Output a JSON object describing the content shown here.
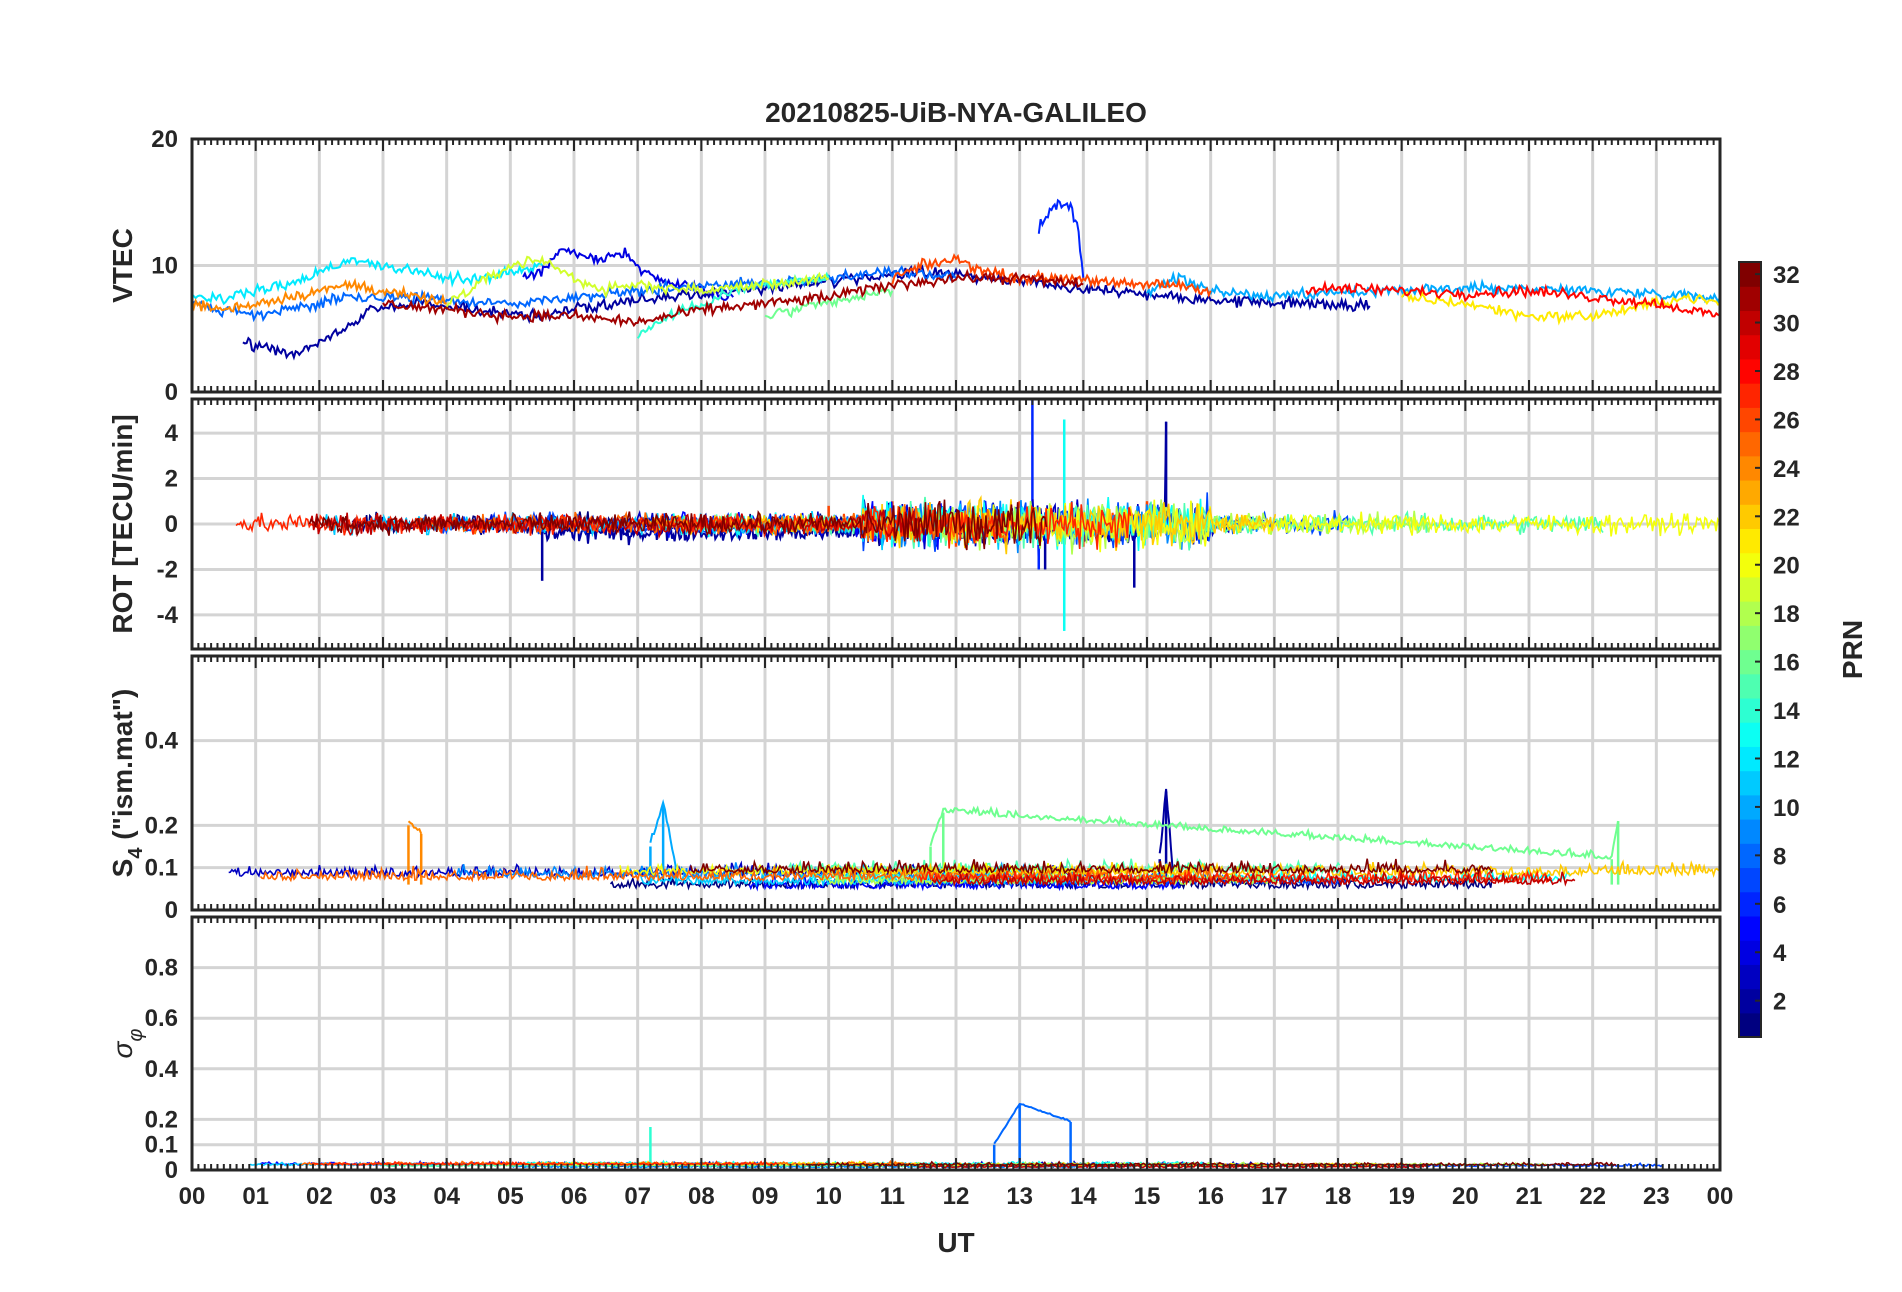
{
  "chart_data": {
    "type": "line",
    "title": "20210825-UiB-NYA-GALILEO",
    "xlabel": "UT",
    "x_ticks": [
      "00",
      "01",
      "02",
      "03",
      "04",
      "05",
      "06",
      "07",
      "08",
      "09",
      "10",
      "11",
      "12",
      "13",
      "14",
      "15",
      "16",
      "17",
      "18",
      "19",
      "20",
      "21",
      "22",
      "23",
      "00"
    ],
    "xlim_hours": [
      0,
      24
    ],
    "colorbar": {
      "label": "PRN",
      "colormap": "jet",
      "range": [
        1,
        32
      ],
      "ticks": [
        "2",
        "4",
        "6",
        "8",
        "10",
        "12",
        "14",
        "16",
        "18",
        "20",
        "22",
        "24",
        "26",
        "28",
        "30",
        "32"
      ]
    },
    "panels": [
      {
        "ylabel": "VTEC",
        "ylim": [
          0,
          20
        ],
        "y_ticks": [
          "0",
          "10",
          "20"
        ],
        "note": "VTEC roughly 5–11 TECU for all satellites; short spike near 13–14 UT up to ~15 TECU",
        "series": [
          {
            "prn": 2,
            "x": [
              0.8,
              1.2,
              1.6,
              2.0,
              2.4,
              2.8,
              3.5,
              4.5,
              5.5,
              6.5,
              7.5,
              8.5,
              9.5,
              10.5,
              11.5,
              12.5,
              13.5,
              14.5,
              15.5,
              16.5,
              17.5,
              18.5
            ],
            "y": [
              4,
              3.5,
              3,
              4,
              5,
              6.5,
              7,
              6.5,
              6,
              7,
              7.5,
              8,
              8.5,
              9,
              9.5,
              9,
              8.5,
              8,
              7.5,
              7.2,
              7,
              6.8
            ]
          },
          {
            "prn": 4,
            "x": [
              5.2,
              5.6,
              5.8,
              6.0,
              6.4,
              6.8,
              7.2,
              7.6,
              8.0,
              8.5
            ],
            "y": [
              9,
              10,
              11.5,
              11,
              10.5,
              11,
              9,
              8.5,
              8,
              7.5
            ]
          },
          {
            "prn": 6,
            "x": [
              13.3,
              13.5,
              13.6,
              13.8,
              13.9,
              14.0
            ],
            "y": [
              13,
              14.5,
              15,
              14.5,
              13.5,
              9
            ]
          },
          {
            "prn": 8,
            "x": [
              0,
              0.5,
              1.0,
              1.5,
              2.0,
              2.5,
              3.0,
              3.5,
              4.0,
              5.0,
              6.0,
              7.0,
              8.0,
              9.0,
              10.0,
              11.0,
              12.0
            ],
            "y": [
              7,
              6.5,
              6,
              6.5,
              7,
              7.5,
              7.5,
              7.5,
              7.2,
              7,
              7.5,
              8,
              8.5,
              8.5,
              9,
              9.5,
              9
            ]
          },
          {
            "prn": 10,
            "x": [
              15.0,
              15.5,
              16,
              17,
              18,
              19,
              20,
              21,
              22,
              23,
              24
            ],
            "y": [
              8,
              9,
              8,
              7.5,
              7.8,
              8,
              8.2,
              8.2,
              8,
              7.8,
              7.5
            ]
          },
          {
            "prn": 12,
            "x": [
              0,
              0.5,
              1,
              1.5,
              2,
              2.5,
              3,
              3.5,
              4,
              4.5,
              5,
              5.5
            ],
            "y": [
              7.5,
              7.5,
              8,
              8.5,
              9.5,
              10.5,
              10,
              9.5,
              9,
              9,
              9.5,
              10
            ]
          },
          {
            "prn": 14,
            "x": [
              7,
              7.5,
              8,
              8.5,
              9,
              10
            ],
            "y": [
              4.5,
              6,
              7,
              8,
              8.5,
              9
            ]
          },
          {
            "prn": 16,
            "x": [
              9,
              9.5,
              10,
              10.5,
              11
            ],
            "y": [
              6,
              6.5,
              7,
              7.5,
              8
            ]
          },
          {
            "prn": 19,
            "x": [
              4,
              4.5,
              5,
              5.5,
              6,
              6.5,
              7,
              8,
              9,
              10
            ],
            "y": [
              7,
              8.5,
              10,
              10.5,
              9,
              8,
              8.5,
              8,
              8.5,
              9
            ]
          },
          {
            "prn": 21,
            "x": [
              19,
              20,
              21,
              22,
              23,
              23.5,
              24
            ],
            "y": [
              7.5,
              7,
              6,
              6,
              7,
              7.5,
              7
            ]
          },
          {
            "prn": 24,
            "x": [
              0,
              0.5,
              1,
              1.5,
              2,
              2.5,
              3,
              3.5,
              4
            ],
            "y": [
              7,
              6.5,
              7,
              7.5,
              8,
              8.5,
              8,
              7.5,
              7
            ]
          },
          {
            "prn": 26,
            "x": [
              11,
              11.5,
              12,
              12.5,
              13,
              13.5,
              14,
              14.5,
              15,
              15.5,
              16
            ],
            "y": [
              9,
              10,
              10.5,
              9.5,
              9,
              9,
              9,
              8.5,
              8.5,
              8.5,
              8
            ]
          },
          {
            "prn": 28,
            "x": [
              17.5,
              18,
              19,
              20,
              21,
              22,
              23,
              24
            ],
            "y": [
              8,
              8.2,
              8,
              7.8,
              8,
              7.5,
              7,
              6
            ]
          },
          {
            "prn": 31,
            "x": [
              3,
              4,
              5,
              6,
              7,
              8,
              9,
              10,
              11,
              12,
              13,
              14
            ],
            "y": [
              7,
              6.5,
              6,
              6,
              5.5,
              6.5,
              7,
              7.5,
              8.5,
              9,
              9,
              8.5
            ]
          }
        ]
      },
      {
        "ylabel": "ROT [TECU/min]",
        "ylim": [
          -5.5,
          5.5
        ],
        "y_ticks": [
          "4",
          "2",
          "0",
          "-2",
          "-4"
        ],
        "note": "ROT fluctuates near zero (±1 TECU/min); bursts between 11–16 UT reaching about ±5 TECU/min",
        "series": [
          {
            "prn": 2,
            "x": [
              5.5,
              13.4,
              14.8,
              15.3
            ],
            "y": [
              -2.5,
              -2,
              -2.8,
              4.5
            ]
          },
          {
            "prn": 6,
            "x": [
              13.2,
              13.3
            ],
            "y": [
              5.5,
              -2
            ]
          },
          {
            "prn": 13,
            "x": [
              13.7,
              13.7
            ],
            "y": [
              4.6,
              -4.7
            ]
          },
          {
            "prn": 26,
            "x": [
              10,
              11,
              12,
              13,
              14,
              15
            ],
            "y": [
              0.8,
              1,
              -1,
              1,
              -1,
              1
            ]
          }
        ]
      },
      {
        "ylabel": "S4 (\"ism.mat\")",
        "ylabel_main": "S",
        "ylabel_sub": "4",
        "ylabel_rest": " (\"ism.mat\")",
        "ylim": [
          0,
          0.6
        ],
        "y_ticks": [
          "0",
          "0.1",
          "0.2",
          "0.4"
        ],
        "note": "S4 mostly 0.03–0.12; peaks ~0.25 near 07 UT and ~0.28 near 15.3 UT",
        "series": [
          {
            "prn": 2,
            "x": [
              15.2,
              15.3,
              15.4
            ],
            "y": [
              0.12,
              0.28,
              0.1
            ]
          },
          {
            "prn": 10,
            "x": [
              7.2,
              7.4,
              7.6
            ],
            "y": [
              0.15,
              0.25,
              0.1
            ]
          },
          {
            "prn": 16,
            "x": [
              11.6,
              11.8,
              22.3,
              22.4
            ],
            "y": [
              0.15,
              0.23,
              0.12,
              0.21
            ]
          },
          {
            "prn": 24,
            "x": [
              3.4,
              3.6
            ],
            "y": [
              0.2,
              0.18
            ]
          }
        ]
      },
      {
        "ylabel": "σ φ",
        "ylabel_main": "σ",
        "ylabel_sub": "φ",
        "ylim": [
          0,
          1.0
        ],
        "y_ticks": [
          "0",
          "0.1",
          "0.2",
          "0.4",
          "0.6",
          "0.8"
        ],
        "note": "Phase scintillation index mostly below 0.05; spikes ~0.26 near 13 UT and ~0.19 near 13.8 UT",
        "series": [
          {
            "prn": 8,
            "x": [
              12.6,
              13.0,
              13.8
            ],
            "y": [
              0.1,
              0.26,
              0.19
            ]
          },
          {
            "prn": 14,
            "x": [
              7.2
            ],
            "y": [
              0.17
            ]
          }
        ]
      }
    ]
  }
}
